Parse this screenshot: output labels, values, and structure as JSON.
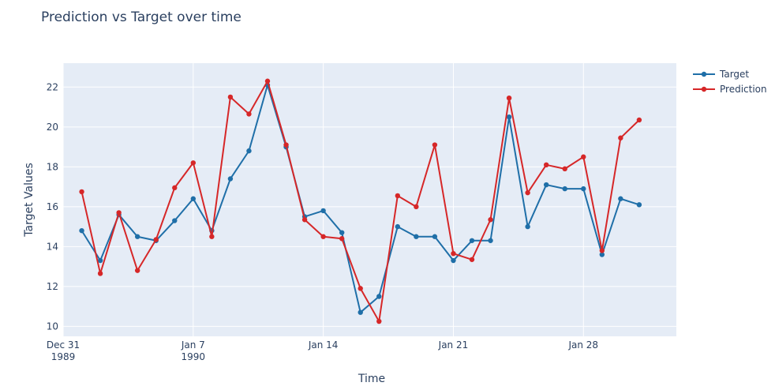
{
  "chart_data": {
    "type": "line",
    "title": "Prediction vs Target over time",
    "xlabel": "Time",
    "ylabel": "Target Values",
    "x": [
      "1990-01-01",
      "1990-01-02",
      "1990-01-03",
      "1990-01-04",
      "1990-01-05",
      "1990-01-06",
      "1990-01-07",
      "1990-01-08",
      "1990-01-09",
      "1990-01-10",
      "1990-01-11",
      "1990-01-12",
      "1990-01-13",
      "1990-01-14",
      "1990-01-15",
      "1990-01-16",
      "1990-01-17",
      "1990-01-18",
      "1990-01-19",
      "1990-01-20",
      "1990-01-21",
      "1990-01-22",
      "1990-01-23",
      "1990-01-24",
      "1990-01-25",
      "1990-01-26",
      "1990-01-27",
      "1990-01-28",
      "1990-01-29",
      "1990-01-30",
      "1990-01-31"
    ],
    "xlim": [
      "1989-12-31",
      "1990-02-02"
    ],
    "ylim": [
      9.5,
      23.2
    ],
    "x_ticks": [
      {
        "date": "1989-12-31",
        "label": "Dec 31",
        "sublabel": "1989"
      },
      {
        "date": "1990-01-07",
        "label": "Jan 7",
        "sublabel": "1990"
      },
      {
        "date": "1990-01-14",
        "label": "Jan 14",
        "sublabel": ""
      },
      {
        "date": "1990-01-21",
        "label": "Jan 21",
        "sublabel": ""
      },
      {
        "date": "1990-01-28",
        "label": "Jan 28",
        "sublabel": ""
      }
    ],
    "y_ticks": [
      10,
      12,
      14,
      16,
      18,
      20,
      22
    ],
    "grid": true,
    "legend_position": "top-right",
    "series": [
      {
        "name": "Target",
        "color": "#1f6fa8",
        "values": [
          14.8,
          13.3,
          15.6,
          14.5,
          14.3,
          15.3,
          16.4,
          14.8,
          17.4,
          18.8,
          22.1,
          19.0,
          15.5,
          15.8,
          14.7,
          10.7,
          11.5,
          15.0,
          14.5,
          14.5,
          13.3,
          14.3,
          14.3,
          20.5,
          15.0,
          17.1,
          16.9,
          16.9,
          13.6,
          16.4,
          16.1
        ]
      },
      {
        "name": "Prediction",
        "color": "#d62728",
        "values": [
          16.75,
          12.65,
          15.7,
          12.8,
          14.35,
          16.95,
          18.2,
          14.5,
          21.5,
          20.65,
          22.3,
          19.1,
          15.35,
          14.5,
          14.4,
          11.9,
          10.25,
          16.55,
          16.0,
          19.1,
          13.65,
          13.35,
          15.35,
          21.45,
          16.7,
          18.1,
          17.9,
          18.5,
          13.8,
          19.45,
          20.35
        ]
      }
    ]
  }
}
